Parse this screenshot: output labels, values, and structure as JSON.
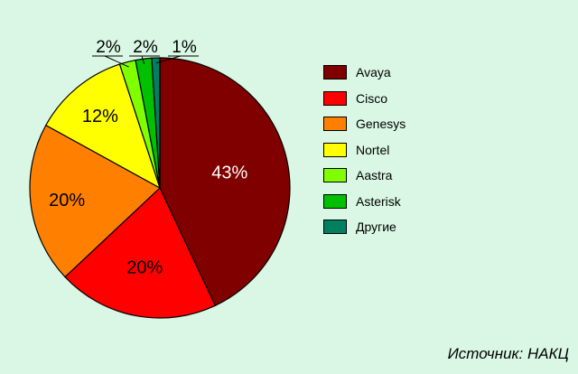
{
  "chart_data": {
    "type": "pie",
    "title": "",
    "categories": [
      "Avaya",
      "Cisco",
      "Genesys",
      "Nortel",
      "Aastra",
      "Asterisk",
      "Другие"
    ],
    "values": [
      43,
      20,
      20,
      12,
      2,
      2,
      1
    ],
    "labels": [
      "43%",
      "20%",
      "20%",
      "12%",
      "2%",
      "2%",
      "1%"
    ],
    "colors": [
      "#800000",
      "#ff0000",
      "#ff8000",
      "#ffff00",
      "#80ff00",
      "#00c000",
      "#008060"
    ],
    "legend_position": "right",
    "start_angle_deg": 0,
    "direction": "clockwise"
  },
  "source": "Источник: НАКЦ"
}
